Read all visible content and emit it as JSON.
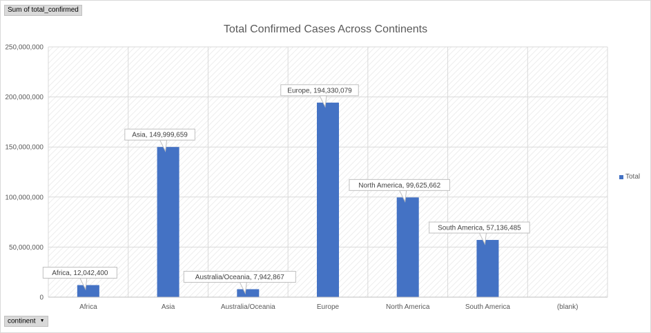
{
  "pivot": {
    "value_field": "Sum of total_confirmed",
    "axis_field": "continent"
  },
  "colors": {
    "bar": "#4472c4",
    "grid": "#d9d9d9",
    "text": "#595959"
  },
  "chart_data": {
    "type": "bar",
    "title": "Total Confirmed Cases Across Continents",
    "xlabel": "",
    "ylabel": "",
    "categories": [
      "Africa",
      "Asia",
      "Australia/Oceania",
      "Europe",
      "North America",
      "South America",
      "(blank)"
    ],
    "series": [
      {
        "name": "Total",
        "values": [
          12042400,
          149999659,
          7942867,
          194330079,
          99625662,
          57136485,
          null
        ]
      }
    ],
    "data_labels": [
      "Africa, 12,042,400",
      "Asia, 149,999,659",
      "Australia/Oceania, 7,942,867",
      "Europe, 194,330,079",
      "North America, 99,625,662",
      "South America, 57,136,485",
      ""
    ],
    "ylim": [
      0,
      250000000
    ],
    "yticks": [
      "0",
      "50,000,000",
      "100,000,000",
      "150,000,000",
      "200,000,000",
      "250,000,000"
    ],
    "grid": true,
    "legend": "right"
  }
}
